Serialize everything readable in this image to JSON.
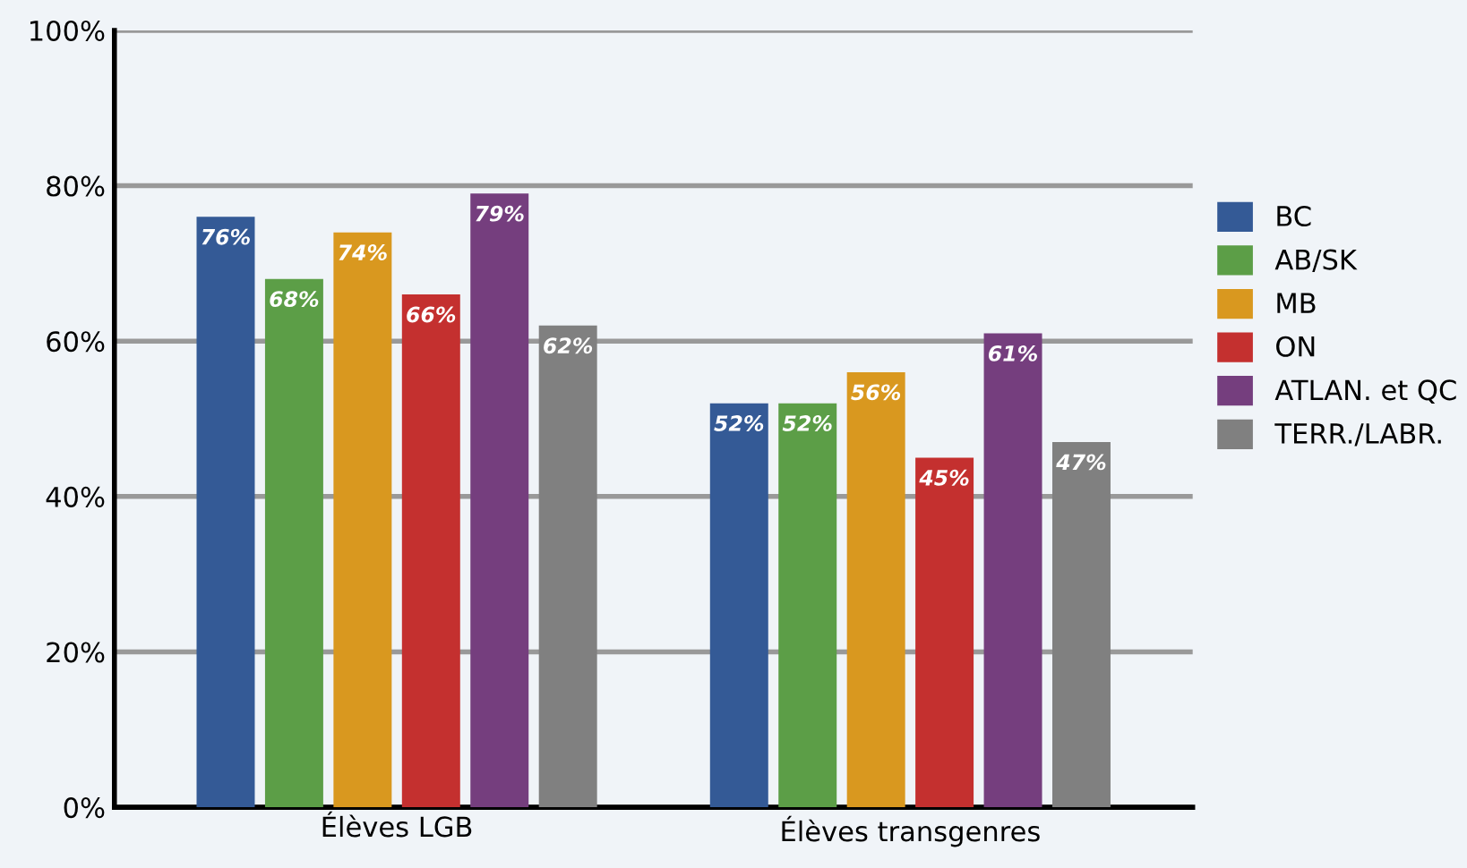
{
  "chart_data": {
    "type": "bar",
    "categories": [
      "Élèves LGB",
      "Élèves transgenres"
    ],
    "series": [
      {
        "name": "BC",
        "color": "#345a96",
        "values": [
          76,
          52
        ],
        "value_labels": [
          "76%",
          "52%"
        ]
      },
      {
        "name": "AB/SK",
        "color": "#5c9e47",
        "values": [
          68,
          52
        ],
        "value_labels": [
          "68%",
          "52%"
        ]
      },
      {
        "name": "MB",
        "color": "#d9981f",
        "values": [
          74,
          56
        ],
        "value_labels": [
          "74%",
          "56%"
        ]
      },
      {
        "name": "ON",
        "color": "#c4302f",
        "values": [
          66,
          45
        ],
        "value_labels": [
          "66%",
          "45%"
        ]
      },
      {
        "name": "ATLAN. et QC",
        "color": "#753e7e",
        "values": [
          79,
          61
        ],
        "value_labels": [
          "79%",
          "61%"
        ]
      },
      {
        "name": "TERR./LABR.",
        "color": "#808080",
        "values": [
          62,
          47
        ],
        "value_labels": [
          "62%",
          "47%"
        ]
      }
    ],
    "ylim": [
      0,
      100
    ],
    "yticks": [
      {
        "value": 0,
        "label": "0%"
      },
      {
        "value": 20,
        "label": "20%"
      },
      {
        "value": 40,
        "label": "40%"
      },
      {
        "value": 60,
        "label": "60%"
      },
      {
        "value": 80,
        "label": "80%"
      },
      {
        "value": 100,
        "label": "100%"
      }
    ],
    "grid": "y",
    "legend": "right"
  }
}
